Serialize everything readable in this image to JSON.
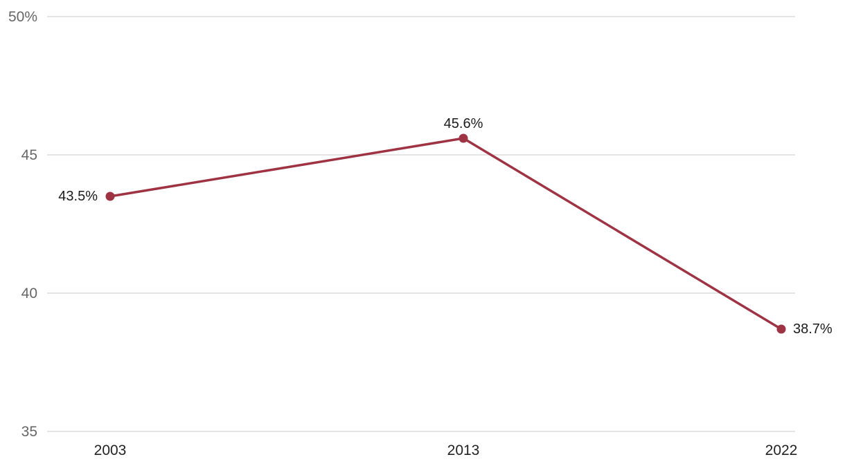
{
  "chart_data": {
    "type": "line",
    "title": "",
    "xlabel": "",
    "ylabel": "",
    "categories": [
      "2003",
      "2013",
      "2022"
    ],
    "x": [
      2003,
      2013,
      2022
    ],
    "series": [
      {
        "values": [
          43.5,
          45.6,
          38.7
        ],
        "data_labels": [
          "43.5%",
          "45.6%",
          "38.7%"
        ],
        "color": "#9e3344"
      }
    ],
    "ylim": [
      35,
      50
    ],
    "y_ticks": [
      35,
      40,
      45,
      50
    ],
    "y_tick_labels": [
      "35",
      "40",
      "45",
      "50%"
    ],
    "grid": true,
    "legend": "none"
  }
}
